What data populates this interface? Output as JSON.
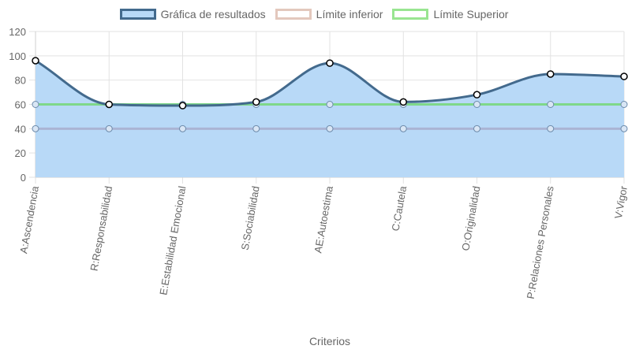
{
  "legend": {
    "results": "Gráfica de resultados",
    "lower": "Límite inferior",
    "upper": "Límite Superior"
  },
  "colors": {
    "results_line": "#436a8d",
    "results_fill": "#b8d9f7",
    "lower_line": "#aab4d4",
    "lower_legend_border": "#e3c8bd",
    "upper_line": "#7fd88a",
    "upper_legend_border": "#99e591",
    "grid": "#e2e2e2"
  },
  "chart_data": {
    "type": "area",
    "categories": [
      "A:Ascendencia",
      "R:Responsabilidad",
      "E:Estabilidad Emocional",
      "S:Sociabilidad",
      "AE:Autoestima",
      "C:Cautela",
      "O:Originalidad",
      "P:Relaciones Personales",
      "V:Vigor"
    ],
    "series": [
      {
        "name": "Gráfica de resultados",
        "values": [
          96,
          60,
          59,
          62,
          94,
          62,
          68,
          85,
          83
        ]
      },
      {
        "name": "Límite inferior",
        "values": [
          40,
          40,
          40,
          40,
          40,
          40,
          40,
          40,
          40
        ]
      },
      {
        "name": "Límite Superior",
        "values": [
          60,
          60,
          60,
          60,
          60,
          60,
          60,
          60,
          60
        ]
      }
    ],
    "y_ticks": [
      "0",
      "20",
      "40",
      "60",
      "80",
      "100",
      "120"
    ],
    "ylim": [
      0,
      120
    ],
    "xlabel": "Criterios",
    "ylabel": "",
    "grid": true,
    "legend_position": "top"
  }
}
